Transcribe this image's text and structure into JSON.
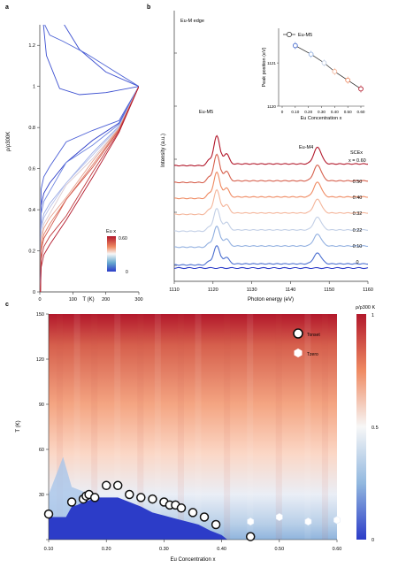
{
  "panel_a": {
    "label": "a",
    "xlabel": "T (K)",
    "ylabel": "ρ/ρ300K",
    "x_ticks": [
      "0",
      "100",
      "200",
      "300"
    ],
    "y_ticks": [
      "0",
      "0.2",
      "0.4",
      "0.6",
      "0.8",
      "1",
      "1.2"
    ],
    "colorbar": {
      "title": "Eu x",
      "max_label": "0.60",
      "min_label": "0"
    }
  },
  "panel_b": {
    "label": "b",
    "edge_label": "Eu-M edge",
    "peak_m5": "Eu-M5",
    "peak_m4": "Eu-M4",
    "xlabel": "Photon energy (eV)",
    "ylabel": "Intensity (a.u.)",
    "x_ticks": [
      "1110",
      "1120",
      "1130",
      "1140",
      "1150",
      "1160"
    ],
    "series_header_1": "SCEx",
    "series_header_2": "x = 0.60",
    "series_labels": [
      "0.50",
      "0.40",
      "0.32",
      "0.22",
      "0.10",
      "0"
    ],
    "inset": {
      "legend": "Eu-M5",
      "xlabel": "Eu Concentration x",
      "ylabel": "Peak position (eV)",
      "x_ticks": [
        "0",
        "0.10",
        "0.20",
        "0.30",
        "0.40",
        "0.50",
        "0.60"
      ],
      "y_ticks": [
        "1120",
        "1121"
      ]
    }
  },
  "panel_c": {
    "label": "c",
    "xlabel": "Eu Concentration x",
    "ylabel": "T (K)",
    "x_ticks": [
      "0.10",
      "0.20",
      "0.30",
      "0.40",
      "0.50",
      "0.60"
    ],
    "y_ticks": [
      "0",
      "30",
      "60",
      "90",
      "120",
      "150"
    ],
    "legend_onset": "Tonset",
    "legend_zero": "Tzero",
    "colorbar": {
      "title": "ρ/ρ300 K",
      "ticks": [
        "1",
        "0.5",
        "0"
      ]
    }
  },
  "chart_data": [
    {
      "type": "line",
      "panel": "a",
      "xlim": [
        0,
        300
      ],
      "ylim": [
        0,
        1.3
      ],
      "series_norm_at_300": 1.0,
      "series": [
        {
          "x_eu": 0.0,
          "values": [
            [
              12,
              1.3
            ],
            [
              60,
              0.98
            ],
            [
              150,
              0.95
            ],
            [
              300,
              1.0
            ]
          ]
        },
        {
          "x_eu": 0.05,
          "values": [
            [
              50,
              1.3
            ],
            [
              150,
              1.08
            ],
            [
              300,
              1.0
            ]
          ]
        },
        {
          "x_eu": 0.6,
          "values": [
            [
              5,
              0.12
            ],
            [
              20,
              0.27
            ],
            [
              100,
              0.47
            ],
            [
              200,
              0.73
            ],
            [
              300,
              1.0
            ]
          ]
        }
      ]
    },
    {
      "type": "line",
      "panel": "b",
      "xlim": [
        1110,
        1160
      ],
      "peaks_eV": {
        "M5": 1121,
        "M4": 1147
      },
      "inset": {
        "type": "line",
        "x": [
          0.1,
          0.22,
          0.32,
          0.4,
          0.5,
          0.6
        ],
        "y": [
          1121.4,
          1121.2,
          1121.0,
          1120.8,
          1120.6,
          1120.4
        ],
        "xlim": [
          0,
          0.6
        ],
        "ylim": [
          1120,
          1121.8
        ]
      }
    },
    {
      "type": "heatmap",
      "panel": "c",
      "xlim": [
        0.1,
        0.6
      ],
      "ylim": [
        0,
        150
      ],
      "t_onset": {
        "x": [
          0.1,
          0.14,
          0.16,
          0.165,
          0.17,
          0.18,
          0.2,
          0.22,
          0.24,
          0.26,
          0.28,
          0.3,
          0.31,
          0.32,
          0.33,
          0.35,
          0.37,
          0.39,
          0.45
        ],
        "y": [
          17,
          25,
          27,
          29,
          30,
          28,
          36,
          36,
          30,
          28,
          27,
          25,
          23,
          23,
          21,
          18,
          15,
          10,
          2
        ]
      },
      "t_zero": {
        "x": [
          0.45,
          0.5,
          0.55,
          0.6
        ],
        "y": [
          12,
          15,
          12,
          13
        ]
      }
    }
  ]
}
